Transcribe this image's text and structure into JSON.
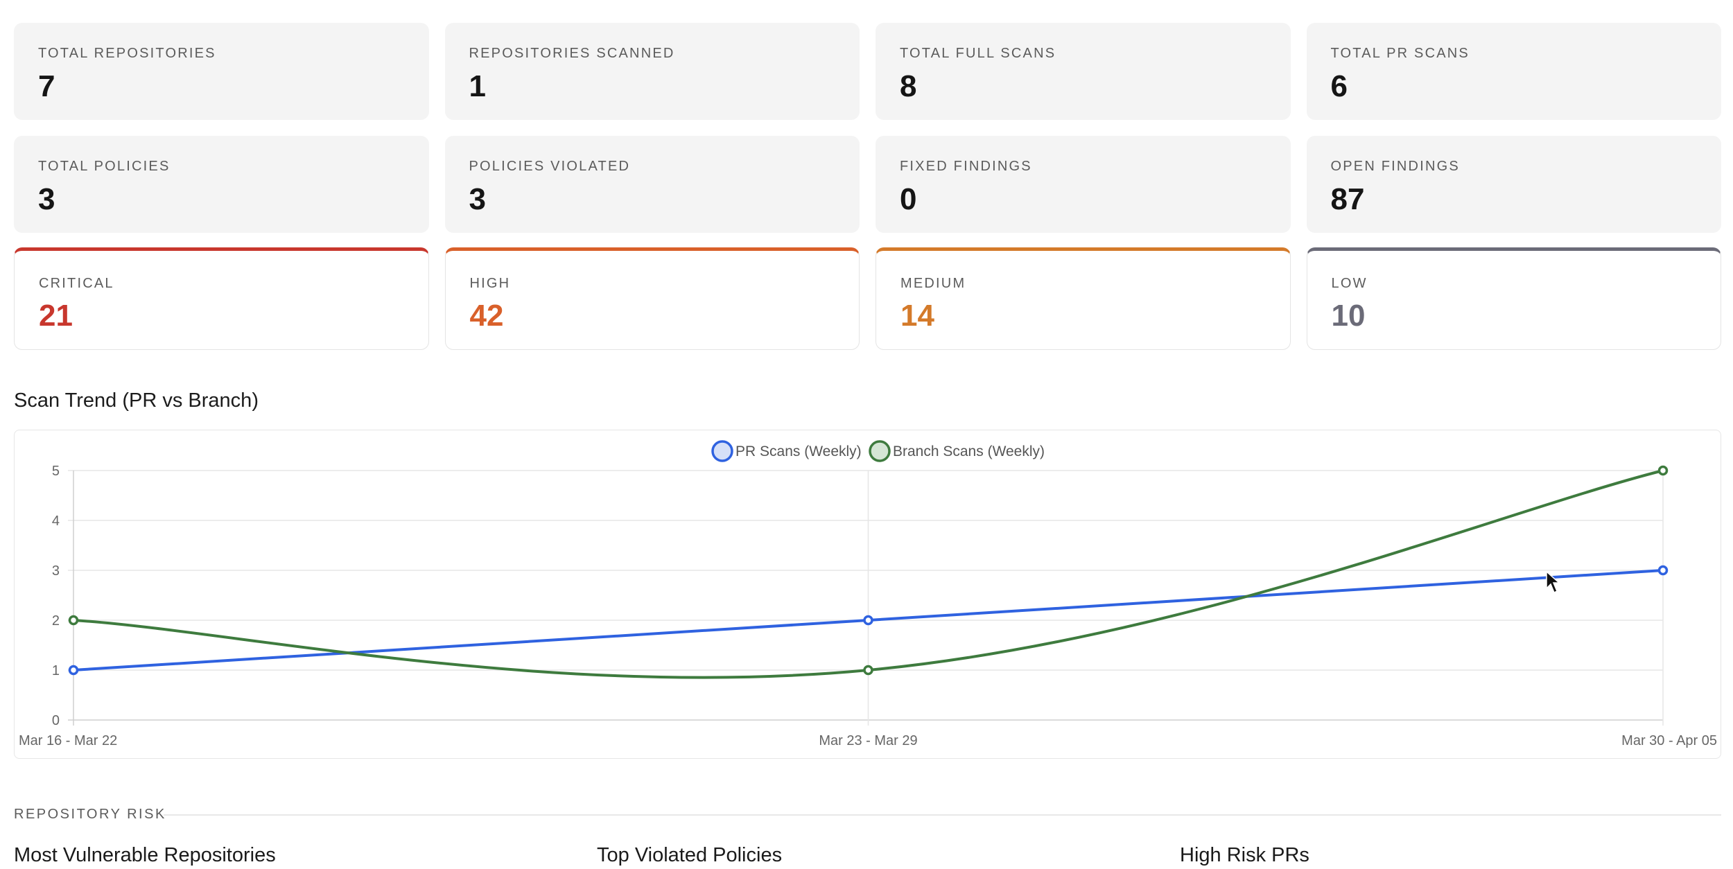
{
  "stats": [
    {
      "label": "TOTAL REPOSITORIES",
      "value": "7"
    },
    {
      "label": "REPOSITORIES SCANNED",
      "value": "1"
    },
    {
      "label": "TOTAL FULL SCANS",
      "value": "8"
    },
    {
      "label": "TOTAL PR SCANS",
      "value": "6"
    },
    {
      "label": "TOTAL POLICIES",
      "value": "3"
    },
    {
      "label": "POLICIES VIOLATED",
      "value": "3"
    },
    {
      "label": "FIXED FINDINGS",
      "value": "0"
    },
    {
      "label": "OPEN FINDINGS",
      "value": "87"
    }
  ],
  "severity": [
    {
      "label": "CRITICAL",
      "value": "21",
      "color": "#c8372d"
    },
    {
      "label": "HIGH",
      "value": "42",
      "color": "#d9602a"
    },
    {
      "label": "MEDIUM",
      "value": "14",
      "color": "#d47a2a"
    },
    {
      "label": "LOW",
      "value": "10",
      "color": "#6b6b78"
    }
  ],
  "trend_section": {
    "title": "Scan Trend (PR vs Branch)"
  },
  "chart_data": {
    "type": "line",
    "categories": [
      "Mar 16 - Mar 22",
      "Mar 23 - Mar 29",
      "Mar 30 - Apr 05"
    ],
    "series": [
      {
        "name": "PR Scans (Weekly)",
        "values": [
          1,
          2,
          3
        ],
        "color": "#2f62e0",
        "smooth": false
      },
      {
        "name": "Branch Scans (Weekly)",
        "values": [
          2,
          1,
          5
        ],
        "color": "#3e7b3e",
        "smooth": true
      }
    ],
    "ylim": [
      0,
      5
    ],
    "yticks": [
      "0",
      "1",
      "2",
      "3",
      "4",
      "5"
    ],
    "grid": true,
    "legend": "top-center"
  },
  "repo_risk": {
    "label": "REPOSITORY RISK",
    "columns": [
      "Most Vulnerable Repositories",
      "Top Violated Policies",
      "High Risk PRs"
    ]
  }
}
